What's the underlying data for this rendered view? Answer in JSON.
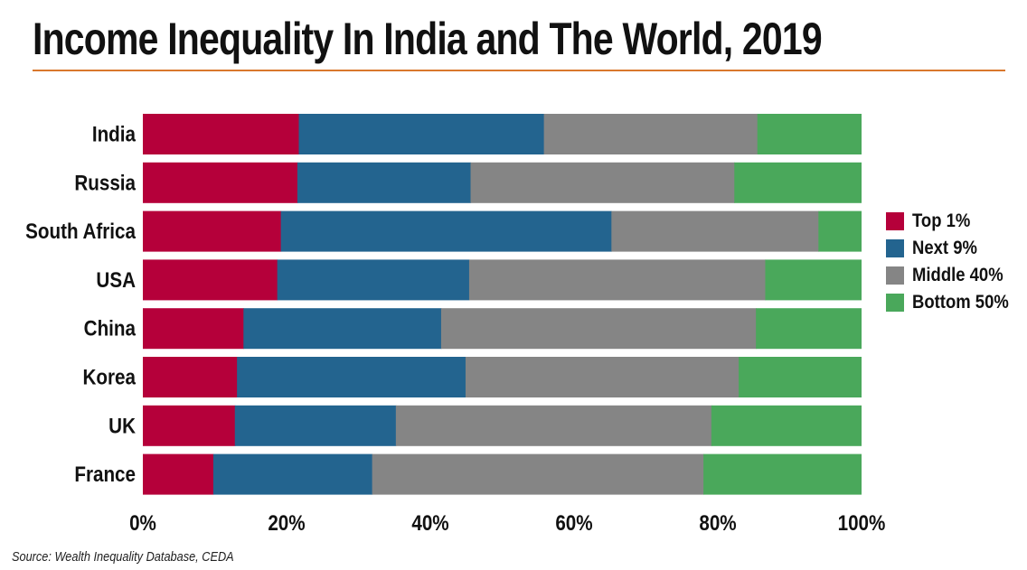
{
  "title": "Income Inequality In India and The World, 2019",
  "source": "Source: Wealth Inequality Database, CEDA",
  "chart_data": {
    "type": "bar",
    "orientation": "horizontal",
    "stacked": true,
    "percent_stacked": true,
    "title": "Income Inequality In India and The World, 2019",
    "xlabel": "",
    "ylabel": "",
    "xlim": [
      0,
      100
    ],
    "x_ticks": [
      "0%",
      "20%",
      "40%",
      "60%",
      "80%",
      "100%"
    ],
    "grid": false,
    "legend_position": "right",
    "categories": [
      "India",
      "Russia",
      "South Africa",
      "USA",
      "China",
      "Korea",
      "UK",
      "France"
    ],
    "series": [
      {
        "name": "Top 1%",
        "color": "#b5003a",
        "values": [
          21.7,
          21.5,
          19.2,
          18.7,
          14.0,
          13.1,
          12.8,
          9.8
        ]
      },
      {
        "name": "Next 9%",
        "color": "#23648f",
        "values": [
          34.1,
          24.1,
          46.0,
          26.7,
          27.5,
          31.8,
          22.4,
          22.1
        ]
      },
      {
        "name": "Middle 40%",
        "color": "#858585",
        "values": [
          29.7,
          36.7,
          28.8,
          41.2,
          43.8,
          38.0,
          43.9,
          46.1
        ]
      },
      {
        "name": "Bottom 50%",
        "color": "#4aa85b",
        "values": [
          14.5,
          17.7,
          6.0,
          13.4,
          14.7,
          17.1,
          20.9,
          22.0
        ]
      }
    ]
  }
}
